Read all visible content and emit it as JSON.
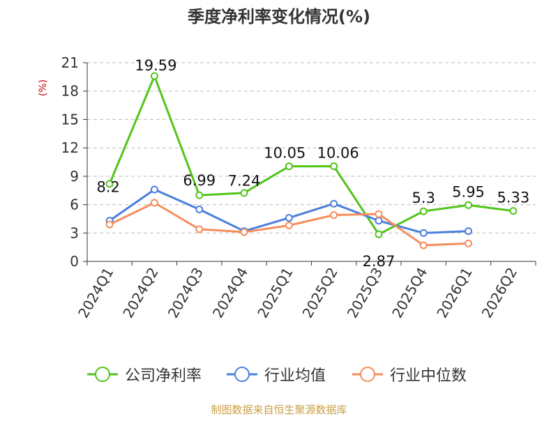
{
  "chart_data": {
    "type": "line",
    "title": "季度净利率变化情况(%)",
    "ylabel": "(%)",
    "xlabel": "",
    "categories": [
      "2024Q1",
      "2024Q2",
      "2024Q3",
      "2024Q4",
      "2025Q1",
      "2025Q2",
      "2025Q3",
      "2025Q4",
      "2026Q1",
      "2026Q2"
    ],
    "ylim": [
      0,
      21
    ],
    "yticks": [
      0,
      3,
      6,
      9,
      12,
      15,
      18,
      21
    ],
    "grid": true,
    "legend_position": "bottom",
    "series": [
      {
        "name": "公司净利率",
        "color": "#52c41a",
        "values": [
          8.2,
          19.59,
          6.99,
          7.24,
          10.05,
          10.06,
          2.87,
          5.3,
          5.95,
          5.33
        ],
        "labels": [
          "8.2",
          "19.59",
          "6.99",
          "7.24",
          "10.05",
          "10.06",
          "2.87",
          "5.3",
          "5.95",
          "5.33"
        ]
      },
      {
        "name": "行业均值",
        "color": "#4a7fdc",
        "values": [
          4.3,
          7.6,
          5.5,
          3.2,
          4.6,
          6.1,
          4.3,
          3.0,
          3.2,
          null
        ]
      },
      {
        "name": "行业中位数",
        "color": "#f58d5c",
        "values": [
          3.9,
          6.2,
          3.4,
          3.1,
          3.8,
          4.9,
          5.0,
          1.7,
          1.9,
          null
        ]
      }
    ]
  },
  "source": "制图数据来自恒生聚源数据库",
  "colors": {
    "title": "#333333",
    "ylabel": "#cc0000",
    "source": "#c8a04a",
    "axis": "#333333",
    "grid": "#bbbbbb"
  }
}
